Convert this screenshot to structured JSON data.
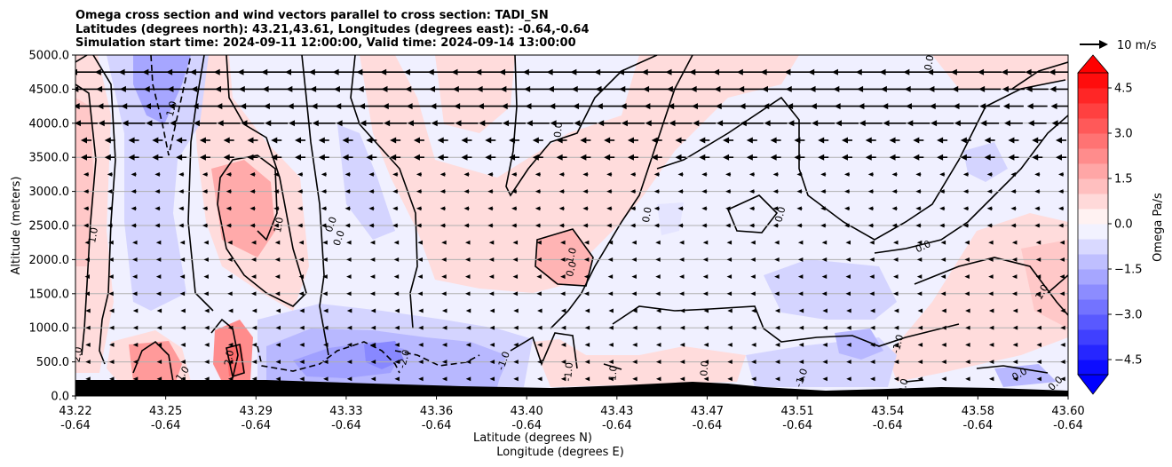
{
  "chart_data": {
    "type": "heatmap",
    "title_lines": [
      "Omega cross section and wind vectors parallel to cross section: TADI_SN",
      "Latitudes (degrees north): 43.21,43.61, Longitudes (degrees east): -0.64,-0.64",
      "Simulation start time: 2024-09-11 12:00:00, Valid time: 2024-09-14 13:00:00"
    ],
    "ylabel": "Altitude (meters)",
    "xlabel_lat": "Latitude (degrees N)",
    "xlabel_lon": "Longitude (degrees E)",
    "ylim": [
      0,
      5000
    ],
    "yticks": [
      "0.0",
      "500.0",
      "1000.0",
      "1500.0",
      "2000.0",
      "2500.0",
      "3000.0",
      "3500.0",
      "4000.0",
      "4500.0",
      "5000.0"
    ],
    "xticks_lat": [
      "43.22",
      "43.25",
      "43.29",
      "43.33",
      "43.36",
      "43.40",
      "43.43",
      "43.47",
      "43.51",
      "43.54",
      "43.58",
      "43.60"
    ],
    "xticks_lon": [
      "-0.64",
      "-0.64",
      "-0.64",
      "-0.64",
      "-0.64",
      "-0.64",
      "-0.64",
      "-0.64",
      "-0.64",
      "-0.64",
      "-0.64",
      "-0.64"
    ],
    "grid": "horizontal",
    "colorbar": {
      "label": "Omega Pa/s",
      "ticks": [
        "4.5",
        "3.0",
        "1.5",
        "0.0",
        "−1.5",
        "−3.0",
        "−4.5"
      ],
      "range": [
        -5.0,
        5.0
      ],
      "extend": "both",
      "colormap": "bwr"
    },
    "vector_key": {
      "label": "10 m/s"
    },
    "contour_labels": [
      {
        "text": "1.0",
        "x": 43.228,
        "y": 2350,
        "rot": -80
      },
      {
        "text": "2.0",
        "x": 43.222,
        "y": 600,
        "rot": -80
      },
      {
        "text": "1.0",
        "x": 43.258,
        "y": 4200,
        "rot": -75
      },
      {
        "text": "1.0",
        "x": 43.262,
        "y": 300,
        "rot": -55
      },
      {
        "text": "2.0",
        "x": 43.28,
        "y": 550,
        "rot": -80
      },
      {
        "text": "1.0",
        "x": 43.299,
        "y": 2500,
        "rot": -80
      },
      {
        "text": "0.0",
        "x": 43.319,
        "y": 2500,
        "rot": -70
      },
      {
        "text": "0.0",
        "x": 43.322,
        "y": 2300,
        "rot": -70
      },
      {
        "text": "-2.0",
        "x": 43.347,
        "y": 530,
        "rot": -75
      },
      {
        "text": "-1.0",
        "x": 43.385,
        "y": 500,
        "rot": -70
      },
      {
        "text": "0.0",
        "x": 43.406,
        "y": 3900,
        "rot": -85
      },
      {
        "text": "1.0",
        "x": 43.411,
        "y": 2050,
        "rot": -75
      },
      {
        "text": "0.0",
        "x": 43.411,
        "y": 1850,
        "rot": -75
      },
      {
        "text": "-1.0",
        "x": 43.41,
        "y": 350,
        "rot": -85
      },
      {
        "text": "1.0",
        "x": 43.427,
        "y": 330,
        "rot": -85
      },
      {
        "text": "0.0",
        "x": 43.44,
        "y": 2650,
        "rot": -80
      },
      {
        "text": "0.0",
        "x": 43.462,
        "y": 400,
        "rot": -85
      },
      {
        "text": "0.0",
        "x": 43.491,
        "y": 2650,
        "rot": -75
      },
      {
        "text": "-1.0",
        "x": 43.499,
        "y": 250,
        "rot": -70
      },
      {
        "text": "0.0",
        "x": 43.545,
        "y": 2150,
        "rot": -25
      },
      {
        "text": "-1.0",
        "x": 43.536,
        "y": 750,
        "rot": -75
      },
      {
        "text": "0.0",
        "x": 43.538,
        "y": 130,
        "rot": -75
      },
      {
        "text": "0.0",
        "x": 43.548,
        "y": 4880,
        "rot": -80
      },
      {
        "text": "1.0",
        "x": 43.591,
        "y": 1500,
        "rot": -60
      },
      {
        "text": "0.0",
        "x": 43.582,
        "y": 280,
        "rot": -30
      },
      {
        "text": "0.0",
        "x": 43.596,
        "y": 150,
        "rot": -45
      }
    ]
  }
}
